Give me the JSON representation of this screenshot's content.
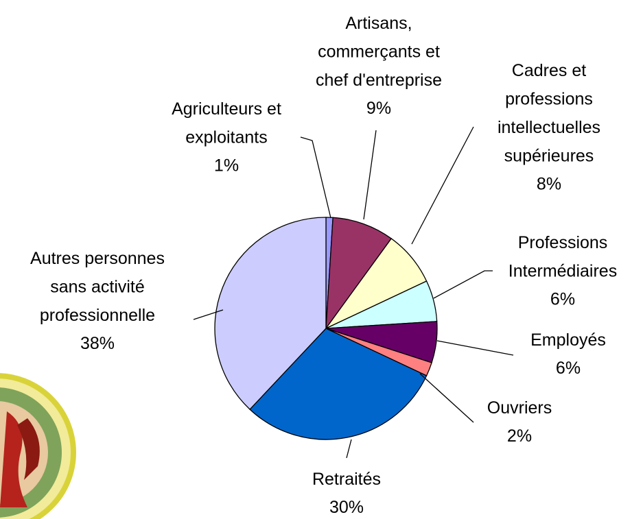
{
  "chart_data": {
    "type": "pie",
    "categories": [
      "Agriculteurs et\nexploitants",
      "Artisans,\ncommerçants et\nchef d'entreprise",
      "Cadres et\nprofessions\nintellectuelles\nsupérieures",
      "Professions\nIntermédiaires",
      "Employés",
      "Ouvriers",
      "Retraités",
      "Autres personnes\nsans activité\nprofessionnelle"
    ],
    "values": [
      1,
      9,
      8,
      6,
      6,
      2,
      30,
      38
    ],
    "value_labels": [
      "1%",
      "9%",
      "8%",
      "6%",
      "6%",
      "2%",
      "30%",
      "38%"
    ],
    "colors": [
      "#9999ff",
      "#993366",
      "#ffffcc",
      "#ccffff",
      "#660066",
      "#ff8080",
      "#0066cc",
      "#ccccff"
    ]
  }
}
